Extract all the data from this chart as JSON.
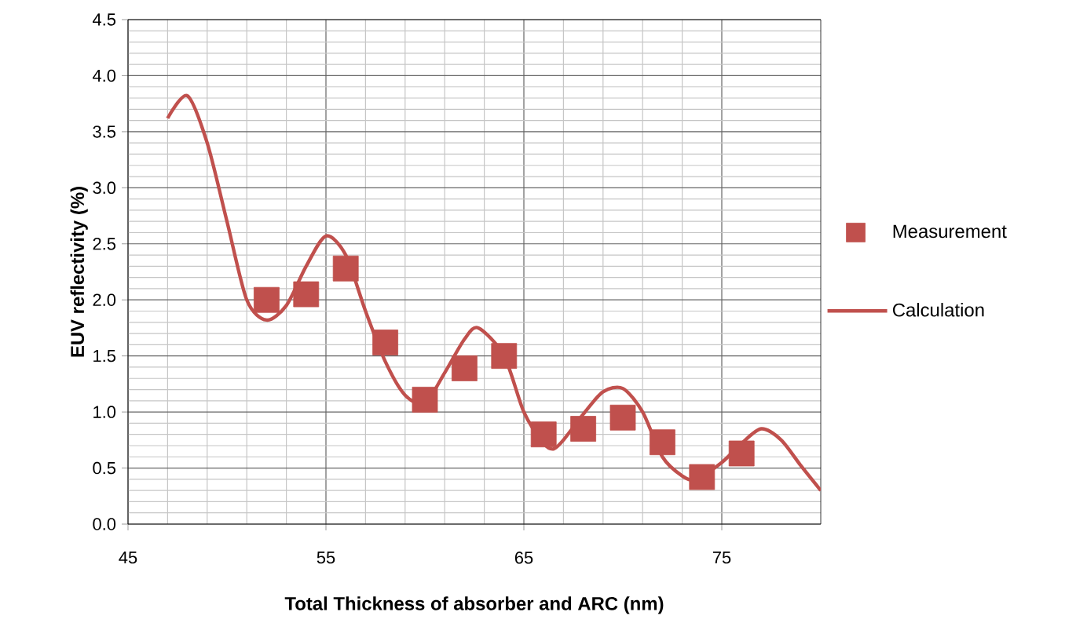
{
  "chart_data": {
    "type": "line",
    "xlabel": "Total Thickness of absorber and ARC (nm)",
    "ylabel": "EUV reflectivity (%)",
    "xlim": [
      45,
      80
    ],
    "ylim": [
      0,
      4.5
    ],
    "xticks": [
      45,
      55,
      65,
      75
    ],
    "yticks": [
      {
        "value": 0,
        "label": "0.0"
      },
      {
        "value": 0.5,
        "label": "0.5"
      },
      {
        "value": 1,
        "label": "1.0"
      },
      {
        "value": 1.5,
        "label": "1.5"
      },
      {
        "value": 2,
        "label": "2.0"
      },
      {
        "value": 2.5,
        "label": "2.5"
      },
      {
        "value": 3,
        "label": "3.0"
      },
      {
        "value": 3.5,
        "label": "3.5"
      },
      {
        "value": 4,
        "label": "4.0"
      },
      {
        "value": 4.5,
        "label": "4.5"
      }
    ],
    "grid": true,
    "legend": "right",
    "series": [
      {
        "name": "Measurement",
        "type": "scatter",
        "marker": "square",
        "color": "#c0504d",
        "x": [
          52,
          54,
          56,
          58,
          60,
          62,
          64,
          66,
          68,
          70,
          72,
          74,
          76
        ],
        "values": [
          2.0,
          2.05,
          2.28,
          1.62,
          1.11,
          1.39,
          1.5,
          0.8,
          0.85,
          0.95,
          0.73,
          0.42,
          0.63
        ]
      },
      {
        "name": "Calculation",
        "marker": "none",
        "line_style": "solid",
        "color": "#c0504d",
        "x": [
          47,
          48,
          49,
          50,
          51,
          52,
          53,
          54,
          55,
          56,
          57,
          58,
          59,
          60,
          61,
          62,
          62.7,
          64,
          65,
          66,
          66.5,
          67,
          68,
          69,
          70,
          71,
          72,
          73,
          73.7,
          75,
          76,
          77,
          78,
          79,
          80
        ],
        "values": [
          3.62,
          3.82,
          3.4,
          2.7,
          2.0,
          1.82,
          1.95,
          2.3,
          2.57,
          2.4,
          1.9,
          1.45,
          1.15,
          1.08,
          1.35,
          1.65,
          1.75,
          1.5,
          1.0,
          0.72,
          0.67,
          0.75,
          0.98,
          1.18,
          1.21,
          1.0,
          0.6,
          0.43,
          0.4,
          0.55,
          0.72,
          0.85,
          0.75,
          0.52,
          0.3
        ]
      }
    ]
  }
}
